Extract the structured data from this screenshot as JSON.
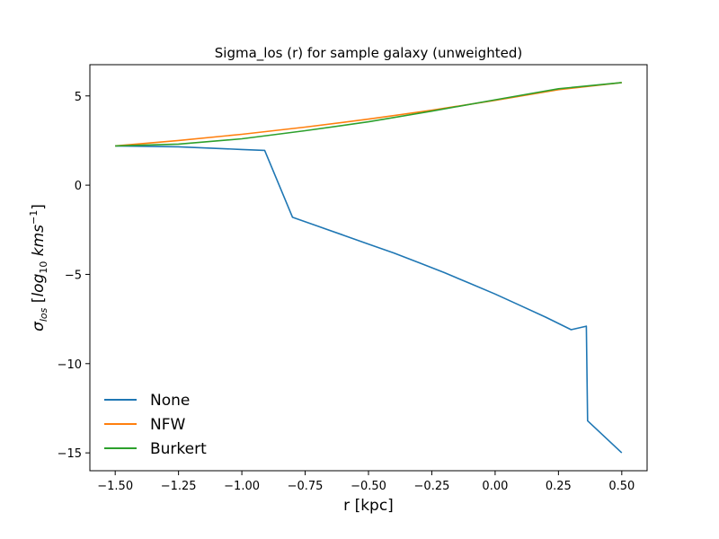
{
  "chart_data": {
    "type": "line",
    "title": "Sigma_los (r) for sample galaxy (unweighted)",
    "xlabel": "r [kpc]",
    "ylabel": {
      "main": "σ",
      "sub": "los",
      "open": " [",
      "log": "log",
      "log_sub": "10",
      "unit": " kms",
      "sup": "−1",
      "close": "]"
    },
    "xlim": [
      -1.6,
      0.6
    ],
    "ylim": [
      -16,
      6.75
    ],
    "xticks": [
      -1.5,
      -1.25,
      -1.0,
      -0.75,
      -0.5,
      -0.25,
      0.0,
      0.25,
      0.5
    ],
    "xtick_labels": [
      "−1.50",
      "−1.25",
      "−1.00",
      "−0.75",
      "−0.50",
      "−0.25",
      "0.00",
      "0.25",
      "0.50"
    ],
    "yticks": [
      5,
      0,
      -5,
      -10,
      -15
    ],
    "ytick_labels": [
      "5",
      "0",
      "−5",
      "−10",
      "−15"
    ],
    "grid": false,
    "legend_position": "lower-left",
    "series": [
      {
        "name": "None",
        "color": "#1f77b4",
        "x": [
          -1.5,
          -1.25,
          -1.0,
          -0.91,
          -0.8,
          -0.7,
          -0.6,
          -0.5,
          -0.4,
          -0.3,
          -0.2,
          -0.1,
          0.0,
          0.1,
          0.2,
          0.3,
          0.36,
          0.365,
          0.5
        ],
        "y": [
          2.2,
          2.15,
          2.0,
          1.95,
          -1.8,
          -2.3,
          -2.8,
          -3.3,
          -3.8,
          -4.35,
          -4.9,
          -5.5,
          -6.1,
          -6.75,
          -7.4,
          -8.1,
          -7.9,
          -13.2,
          -15.0
        ]
      },
      {
        "name": "NFW",
        "color": "#ff7f0e",
        "x": [
          -1.5,
          -1.25,
          -1.0,
          -0.75,
          -0.5,
          -0.25,
          0.0,
          0.25,
          0.5
        ],
        "y": [
          2.2,
          2.5,
          2.85,
          3.25,
          3.7,
          4.2,
          4.75,
          5.35,
          5.75
        ]
      },
      {
        "name": "Burkert",
        "color": "#2ca02c",
        "x": [
          -1.5,
          -1.25,
          -1.0,
          -0.75,
          -0.5,
          -0.25,
          0.0,
          0.25,
          0.5
        ],
        "y": [
          2.2,
          2.3,
          2.6,
          3.05,
          3.55,
          4.15,
          4.78,
          5.4,
          5.75
        ]
      }
    ]
  }
}
